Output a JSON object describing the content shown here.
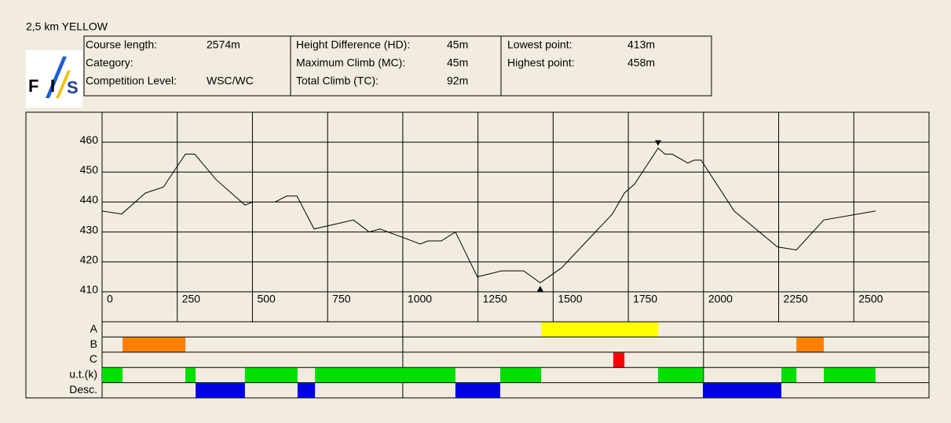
{
  "chart_data": {
    "type": "line",
    "title": "2,5 km YELLOW",
    "logo": [
      "F",
      "I",
      "S"
    ],
    "info": [
      [
        [
          "Course length:",
          "2574m"
        ],
        [
          "Category:"
        ],
        [
          "Competition Level:",
          "WSC/WC"
        ]
      ],
      [
        [
          "Height Difference (HD):",
          "45m"
        ],
        [
          "Maximum Climb (MC):",
          "45m"
        ],
        [
          "Total Climb (TC):",
          "92m"
        ]
      ],
      [
        [
          "Lowest point:",
          "413m"
        ],
        [
          "Highest point:",
          "458m"
        ]
      ]
    ],
    "x": [
      0,
      65,
      144,
      204,
      277,
      308,
      379,
      475,
      501,
      null,
      575,
      614,
      648,
      705,
      836,
      888,
      924,
      1058,
      1084,
      1128,
      1175,
      1248,
      1329,
      1402,
      1457,
      1528,
      1697,
      1737,
      1771,
      1849,
      1872,
      1896,
      1948,
      1969,
      1992,
      2102,
      2246,
      2309,
      2400,
      2572
    ],
    "series": [
      {
        "color": "#000000",
        "values": [
          437,
          436,
          443,
          445,
          456,
          456,
          447.5,
          439,
          440,
          null,
          440,
          442,
          442,
          431,
          434,
          430,
          431,
          426,
          427,
          427,
          430,
          415,
          417,
          417,
          413,
          418,
          436,
          443,
          446,
          458,
          456,
          456,
          453,
          454,
          454,
          437,
          425,
          424,
          434,
          437
        ]
      }
    ],
    "xlim": [
      0,
      2750
    ],
    "xticks": [
      0,
      250,
      500,
      750,
      1000,
      1250,
      1500,
      1750,
      2000,
      2250,
      2500
    ],
    "ylim": [
      400,
      470
    ],
    "yticks": [
      410,
      420,
      430,
      440,
      450,
      460
    ],
    "grid": true,
    "bands": [
      {
        "name": "A",
        "color": "#ffff00",
        "segments": [
          [
            1460,
            1850
          ]
        ]
      },
      {
        "name": "B",
        "color": "#ff8000",
        "segments": [
          [
            68,
            277
          ],
          [
            2309,
            2400
          ]
        ]
      },
      {
        "name": "C",
        "color": "#ff0000",
        "segments": [
          [
            1700,
            1737
          ]
        ]
      },
      {
        "name": "u.t.(k)",
        "color": "#00e000",
        "segments": [
          [
            0,
            68
          ],
          [
            277,
            311
          ],
          [
            475,
            650
          ],
          [
            708,
            1175
          ],
          [
            1324,
            1460
          ],
          [
            1849,
            1998
          ],
          [
            2259,
            2309
          ],
          [
            2400,
            2572
          ]
        ]
      },
      {
        "name": "Desc.",
        "color": "#0000e0",
        "segments": [
          [
            311,
            475
          ],
          [
            650,
            708
          ],
          [
            1175,
            1324
          ],
          [
            1998,
            2259
          ]
        ]
      }
    ]
  }
}
